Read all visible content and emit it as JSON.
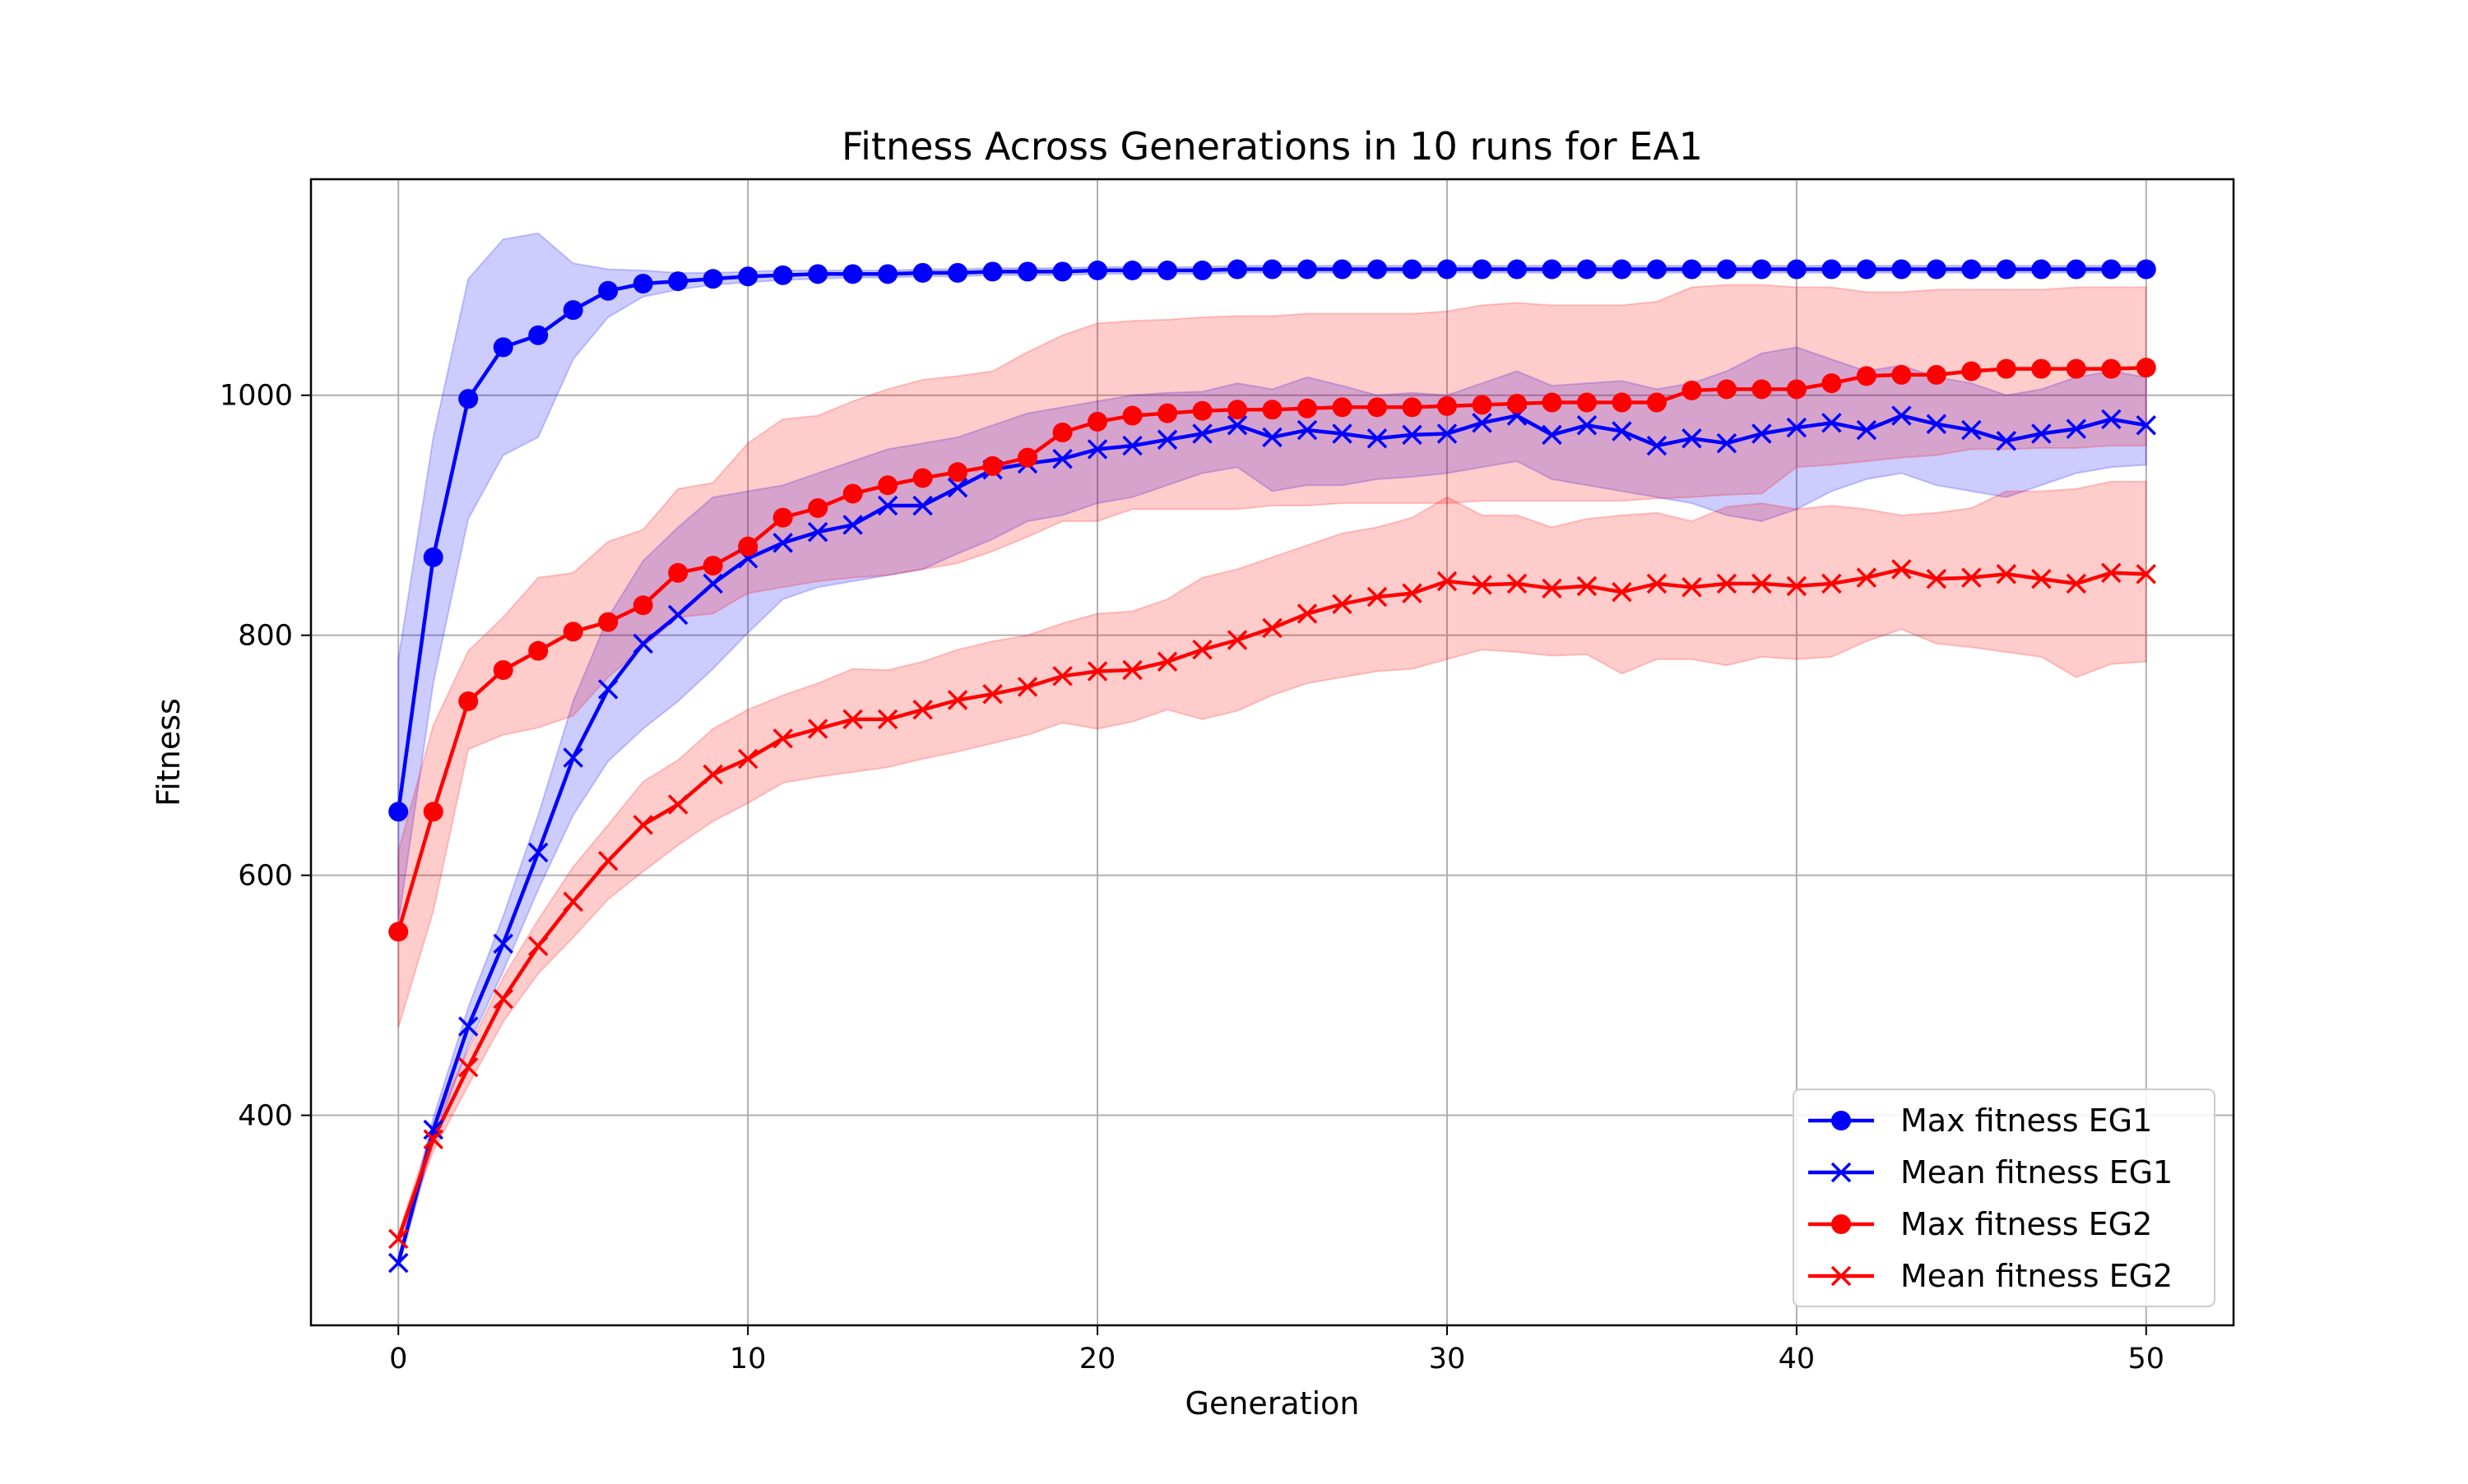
{
  "chart_data": {
    "type": "line",
    "title": "Fitness Across Generations in 10 runs for EA1",
    "xlabel": "Generation",
    "ylabel": "Fitness",
    "xlim": [
      -2.5,
      52.5
    ],
    "ylim": [
      225,
      1180
    ],
    "xticks": [
      0,
      10,
      20,
      30,
      40,
      50
    ],
    "yticks": [
      400,
      600,
      800,
      1000
    ],
    "grid": true,
    "legend_position": "lower-right",
    "x": [
      0,
      1,
      2,
      3,
      4,
      5,
      6,
      7,
      8,
      9,
      10,
      11,
      12,
      13,
      14,
      15,
      16,
      17,
      18,
      19,
      20,
      21,
      22,
      23,
      24,
      25,
      26,
      27,
      28,
      29,
      30,
      31,
      32,
      33,
      34,
      35,
      36,
      37,
      38,
      39,
      40,
      41,
      42,
      43,
      44,
      45,
      46,
      47,
      48,
      49,
      50
    ],
    "series": [
      {
        "name": "Max fitness EG1",
        "color": "#0000ff",
        "marker": "circle",
        "values": [
          653,
          865,
          997,
          1040,
          1050,
          1071,
          1087,
          1093,
          1095,
          1097,
          1099,
          1100,
          1101,
          1101,
          1101,
          1102,
          1102,
          1103,
          1103,
          1103,
          1104,
          1104,
          1104,
          1104,
          1105,
          1105,
          1105,
          1105,
          1105,
          1105,
          1105,
          1105,
          1105,
          1105,
          1105,
          1105,
          1105,
          1105,
          1105,
          1105,
          1105,
          1105,
          1105,
          1105,
          1105,
          1105,
          1105,
          1105,
          1105,
          1105,
          1105
        ],
        "band_low": [
          560,
          760,
          897,
          950,
          965,
          1030,
          1065,
          1082,
          1088,
          1092,
          1094,
          1096,
          1097,
          1098,
          1098,
          1099,
          1099,
          1100,
          1100,
          1100,
          1101,
          1101,
          1101,
          1101,
          1102,
          1102,
          1102,
          1102,
          1102,
          1102,
          1102,
          1102,
          1102,
          1102,
          1102,
          1102,
          1102,
          1102,
          1102,
          1102,
          1102,
          1102,
          1102,
          1102,
          1102,
          1102,
          1102,
          1102,
          1102,
          1102,
          1102
        ],
        "band_high": [
          780,
          965,
          1097,
          1130,
          1135,
          1110,
          1105,
          1104,
          1102,
          1102,
          1103,
          1104,
          1104,
          1104,
          1104,
          1105,
          1105,
          1106,
          1106,
          1106,
          1107,
          1107,
          1107,
          1107,
          1108,
          1108,
          1108,
          1108,
          1108,
          1108,
          1108,
          1108,
          1108,
          1108,
          1108,
          1108,
          1108,
          1108,
          1108,
          1108,
          1108,
          1108,
          1108,
          1108,
          1108,
          1108,
          1108,
          1108,
          1108,
          1108,
          1108
        ]
      },
      {
        "name": "Mean fitness EG1",
        "color": "#0000ff",
        "marker": "x",
        "values": [
          277,
          388,
          474,
          543,
          619,
          698,
          755,
          793,
          817,
          843,
          864,
          877,
          886,
          892,
          908,
          908,
          923,
          938,
          943,
          947,
          955,
          958,
          963,
          968,
          975,
          965,
          971,
          968,
          964,
          967,
          968,
          977,
          983,
          967,
          975,
          970,
          958,
          964,
          960,
          968,
          973,
          977,
          971,
          983,
          976,
          971,
          962,
          968,
          972,
          980,
          975
        ],
        "band_low": [
          272,
          378,
          458,
          520,
          588,
          650,
          695,
          722,
          745,
          772,
          802,
          830,
          840,
          845,
          850,
          855,
          868,
          880,
          895,
          900,
          910,
          915,
          925,
          935,
          940,
          920,
          925,
          925,
          930,
          932,
          935,
          940,
          945,
          930,
          925,
          920,
          915,
          910,
          900,
          895,
          905,
          920,
          930,
          935,
          925,
          920,
          915,
          925,
          935,
          940,
          942
        ],
        "band_high": [
          282,
          398,
          490,
          566,
          650,
          745,
          815,
          862,
          890,
          915,
          920,
          925,
          935,
          945,
          955,
          960,
          965,
          975,
          985,
          990,
          995,
          1000,
          1002,
          1003,
          1010,
          1005,
          1015,
          1008,
          1000,
          1002,
          1000,
          1010,
          1020,
          1008,
          1010,
          1012,
          1005,
          1010,
          1020,
          1035,
          1040,
          1030,
          1020,
          1025,
          1015,
          1010,
          1000,
          1005,
          1015,
          1020,
          1015
        ]
      },
      {
        "name": "Max fitness EG2",
        "color": "#ff0000",
        "marker": "circle",
        "values": [
          553,
          653,
          745,
          771,
          787,
          803,
          811,
          825,
          852,
          858,
          874,
          898,
          906,
          918,
          925,
          931,
          936,
          941,
          948,
          969,
          978,
          983,
          985,
          987,
          988,
          988,
          989,
          990,
          990,
          990,
          991,
          992,
          993,
          994,
          994,
          994,
          994,
          1004,
          1005,
          1005,
          1005,
          1010,
          1016,
          1017,
          1017,
          1020,
          1022,
          1022,
          1022,
          1022,
          1023
        ],
        "band_low": [
          473,
          570,
          705,
          717,
          723,
          733,
          765,
          790,
          815,
          818,
          835,
          840,
          845,
          848,
          850,
          855,
          860,
          870,
          882,
          895,
          895,
          905,
          905,
          905,
          905,
          908,
          908,
          910,
          910,
          910,
          910,
          912,
          912,
          912,
          912,
          912,
          914,
          915,
          917,
          918,
          940,
          942,
          945,
          948,
          950,
          955,
          955,
          956,
          956,
          958,
          958
        ],
        "band_high": [
          620,
          725,
          787,
          815,
          848,
          852,
          878,
          888,
          922,
          927,
          960,
          980,
          983,
          995,
          1005,
          1013,
          1016,
          1020,
          1036,
          1050,
          1060,
          1062,
          1063,
          1065,
          1066,
          1066,
          1068,
          1068,
          1068,
          1068,
          1070,
          1075,
          1077,
          1075,
          1075,
          1075,
          1078,
          1090,
          1092,
          1092,
          1090,
          1090,
          1086,
          1086,
          1088,
          1088,
          1088,
          1088,
          1090,
          1090,
          1090
        ]
      },
      {
        "name": "Mean fitness EG2",
        "color": "#ff0000",
        "marker": "x",
        "values": [
          297,
          380,
          440,
          497,
          541,
          578,
          612,
          642,
          659,
          684,
          697,
          714,
          722,
          730,
          730,
          738,
          746,
          751,
          757,
          766,
          770,
          771,
          778,
          788,
          796,
          806,
          818,
          826,
          832,
          835,
          845,
          842,
          843,
          839,
          841,
          836,
          843,
          840,
          843,
          843,
          841,
          843,
          848,
          855,
          847,
          848,
          851,
          847,
          843,
          852,
          851
        ],
        "band_low": [
          292,
          370,
          425,
          478,
          518,
          548,
          580,
          603,
          625,
          645,
          660,
          677,
          682,
          686,
          690,
          697,
          703,
          710,
          717,
          727,
          722,
          728,
          738,
          730,
          737,
          750,
          760,
          765,
          770,
          772,
          780,
          788,
          786,
          783,
          784,
          768,
          780,
          780,
          775,
          782,
          780,
          782,
          795,
          805,
          793,
          790,
          786,
          782,
          765,
          776,
          778
        ],
        "band_high": [
          302,
          390,
          455,
          515,
          563,
          607,
          642,
          678,
          696,
          722,
          738,
          750,
          760,
          772,
          771,
          778,
          788,
          795,
          800,
          810,
          818,
          820,
          830,
          848,
          855,
          865,
          875,
          885,
          890,
          898,
          915,
          900,
          900,
          890,
          897,
          900,
          902,
          895,
          907,
          910,
          905,
          908,
          905,
          900,
          902,
          906,
          920,
          920,
          922,
          928,
          928
        ]
      }
    ]
  }
}
